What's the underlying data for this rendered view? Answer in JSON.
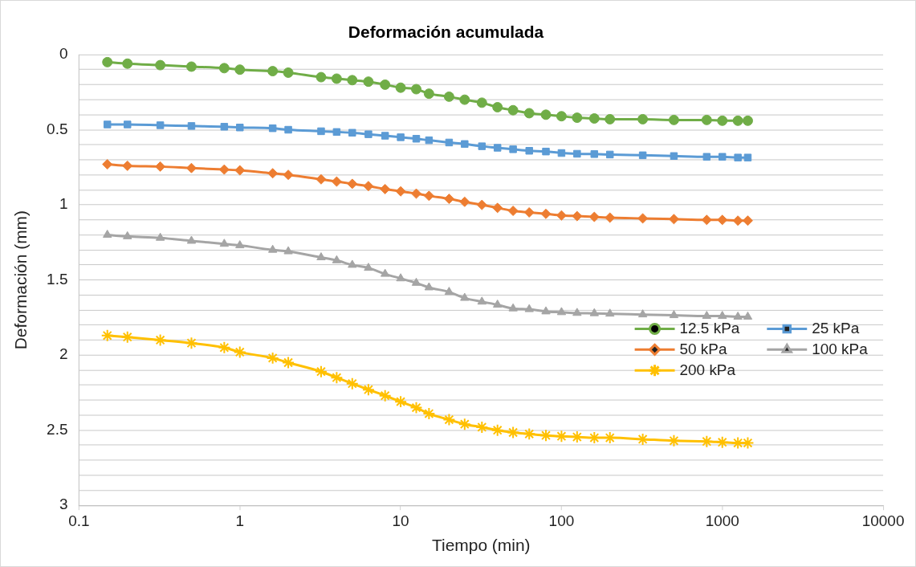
{
  "chart_data": {
    "type": "line",
    "title": "Deformación acumulada",
    "xlabel": "Tiempo (min)",
    "ylabel": "Deformación (mm)",
    "log": "x",
    "grid": "y",
    "legend": "right",
    "x": [
      0.15,
      0.2,
      0.32,
      0.5,
      0.8,
      1,
      1.6,
      2,
      3.2,
      4,
      5,
      6.3,
      8,
      10,
      12.5,
      15,
      20,
      25,
      32,
      40,
      50,
      63,
      80,
      100,
      125,
      160,
      200,
      320,
      500,
      800,
      1000,
      1250,
      1440
    ],
    "xlim": [
      0.1,
      10000
    ],
    "xticks": [
      0.1,
      1,
      10,
      100,
      1000,
      10000
    ],
    "ylim": [
      3,
      0
    ],
    "yticks": [
      0,
      {
        "value": 0.1,
        "label": null
      },
      {
        "value": 0.2,
        "label": null
      },
      {
        "value": 0.3,
        "label": null
      },
      {
        "value": 0.4,
        "label": null
      },
      0.5,
      {
        "value": 0.6,
        "label": null
      },
      {
        "value": 0.7,
        "label": null
      },
      {
        "value": 0.8,
        "label": null
      },
      {
        "value": 0.9,
        "label": null
      },
      1,
      {
        "value": 1.1,
        "label": null
      },
      {
        "value": 1.2,
        "label": null
      },
      {
        "value": 1.3,
        "label": null
      },
      {
        "value": 1.4,
        "label": null
      },
      1.5,
      {
        "value": 1.6,
        "label": null
      },
      {
        "value": 1.7,
        "label": null
      },
      {
        "value": 1.8,
        "label": null
      },
      {
        "value": 1.9,
        "label": null
      },
      2,
      {
        "value": 2.1,
        "label": null
      },
      {
        "value": 2.2,
        "label": null
      },
      {
        "value": 2.3,
        "label": null
      },
      {
        "value": 2.4,
        "label": null
      },
      2.5,
      {
        "value": 2.6,
        "label": null
      },
      {
        "value": 2.7,
        "label": null
      },
      {
        "value": 2.8,
        "label": null
      },
      {
        "value": 2.9,
        "label": null
      },
      3
    ],
    "series": [
      {
        "name": "12.5 kPa",
        "color": "#70ad47",
        "marker": "circle",
        "values": [
          0.05,
          0.06,
          0.07,
          0.08,
          0.09,
          0.1,
          0.11,
          0.12,
          0.15,
          0.16,
          0.17,
          0.18,
          0.2,
          0.22,
          0.23,
          0.26,
          0.28,
          0.3,
          0.32,
          0.35,
          0.37,
          0.39,
          0.4,
          0.41,
          0.42,
          0.425,
          0.43,
          0.43,
          0.435,
          0.435,
          0.44,
          0.44,
          0.44
        ]
      },
      {
        "name": "25 kPa",
        "color": "#5b9bd5",
        "marker": "square",
        "values": [
          0.465,
          0.465,
          0.47,
          0.475,
          0.48,
          0.485,
          0.49,
          0.5,
          0.51,
          0.515,
          0.52,
          0.53,
          0.54,
          0.55,
          0.56,
          0.57,
          0.585,
          0.595,
          0.61,
          0.62,
          0.63,
          0.64,
          0.645,
          0.655,
          0.66,
          0.662,
          0.665,
          0.67,
          0.675,
          0.68,
          0.68,
          0.685,
          0.685
        ]
      },
      {
        "name": "50 kPa",
        "color": "#ed7d31",
        "marker": "diamond",
        "values": [
          0.73,
          0.74,
          0.745,
          0.755,
          0.765,
          0.77,
          0.79,
          0.8,
          0.83,
          0.845,
          0.86,
          0.875,
          0.895,
          0.91,
          0.925,
          0.94,
          0.96,
          0.98,
          1.0,
          1.02,
          1.04,
          1.05,
          1.06,
          1.07,
          1.075,
          1.08,
          1.085,
          1.09,
          1.095,
          1.1,
          1.1,
          1.105,
          1.105
        ]
      },
      {
        "name": "100 kPa",
        "color": "#a5a5a5",
        "marker": "triangle",
        "values": [
          1.2,
          1.21,
          1.22,
          1.24,
          1.26,
          1.27,
          1.3,
          1.31,
          1.35,
          1.37,
          1.4,
          1.42,
          1.46,
          1.49,
          1.52,
          1.55,
          1.58,
          1.62,
          1.645,
          1.665,
          1.69,
          1.695,
          1.71,
          1.715,
          1.72,
          1.722,
          1.725,
          1.73,
          1.735,
          1.74,
          1.74,
          1.745,
          1.745
        ]
      },
      {
        "name": "200 kPa",
        "color": "#ffc000",
        "marker": "cross",
        "values": [
          1.87,
          1.88,
          1.9,
          1.92,
          1.95,
          1.98,
          2.02,
          2.05,
          2.11,
          2.15,
          2.19,
          2.23,
          2.27,
          2.31,
          2.35,
          2.39,
          2.43,
          2.46,
          2.48,
          2.5,
          2.515,
          2.525,
          2.535,
          2.54,
          2.545,
          2.55,
          2.55,
          2.56,
          2.57,
          2.575,
          2.58,
          2.585,
          2.585
        ]
      }
    ]
  }
}
